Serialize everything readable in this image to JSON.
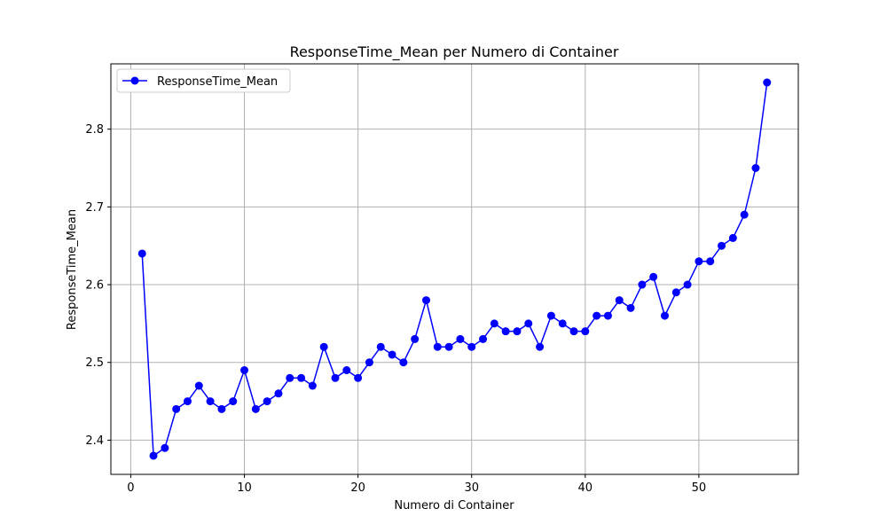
{
  "chart_data": {
    "type": "line",
    "title": "ResponseTime_Mean per Numero di Container",
    "xlabel": "Numero di Container",
    "ylabel": "ResponseTime_Mean",
    "xlim": [
      -1.75,
      58.75
    ],
    "ylim": [
      2.356,
      2.884
    ],
    "xticks": [
      0,
      10,
      20,
      30,
      40,
      50
    ],
    "yticks": [
      2.4,
      2.5,
      2.6,
      2.7,
      2.8
    ],
    "ytick_labels": [
      "2.4",
      "2.5",
      "2.6",
      "2.7",
      "2.8"
    ],
    "grid": true,
    "legend_position": "top-left",
    "series": [
      {
        "name": "ResponseTime_Mean",
        "color": "#0000ff",
        "marker": "circle",
        "x": [
          1,
          2,
          3,
          4,
          5,
          6,
          7,
          8,
          9,
          10,
          11,
          12,
          13,
          14,
          15,
          16,
          17,
          18,
          19,
          20,
          21,
          22,
          23,
          24,
          25,
          26,
          27,
          28,
          29,
          30,
          31,
          32,
          33,
          34,
          35,
          36,
          37,
          38,
          39,
          40,
          41,
          42,
          43,
          44,
          45,
          46,
          47,
          48,
          49,
          50,
          51,
          52,
          53,
          54,
          55,
          56
        ],
        "y": [
          2.64,
          2.38,
          2.39,
          2.44,
          2.45,
          2.47,
          2.45,
          2.44,
          2.45,
          2.49,
          2.44,
          2.45,
          2.46,
          2.48,
          2.48,
          2.47,
          2.52,
          2.48,
          2.49,
          2.48,
          2.5,
          2.52,
          2.51,
          2.5,
          2.53,
          2.58,
          2.52,
          2.52,
          2.53,
          2.52,
          2.53,
          2.55,
          2.54,
          2.54,
          2.55,
          2.52,
          2.56,
          2.55,
          2.54,
          2.54,
          2.56,
          2.56,
          2.58,
          2.57,
          2.6,
          2.61,
          2.56,
          2.59,
          2.6,
          2.63,
          2.63,
          2.65,
          2.66,
          2.69,
          2.75,
          2.86
        ]
      }
    ]
  }
}
